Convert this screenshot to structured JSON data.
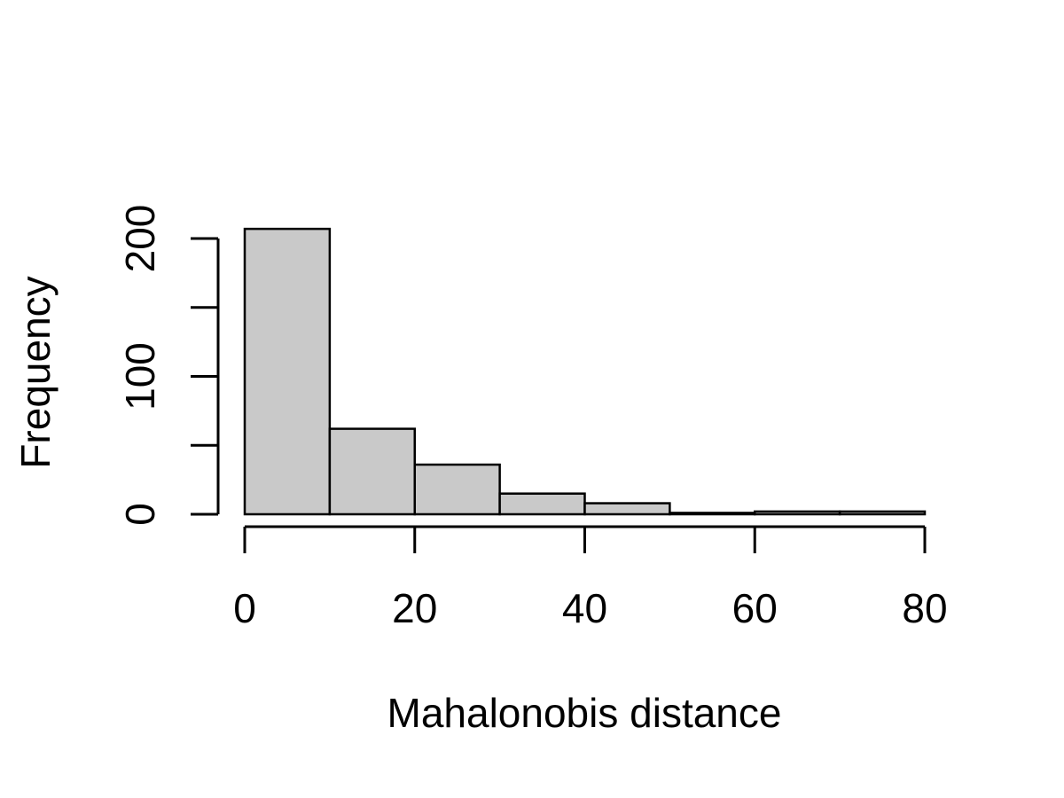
{
  "chart_data": {
    "type": "bar",
    "subtype": "histogram",
    "title": "",
    "xlabel": "Mahalonobis distance",
    "ylabel": "Frequency",
    "bins": [
      {
        "start": 0,
        "end": 10,
        "count": 207
      },
      {
        "start": 10,
        "end": 20,
        "count": 62
      },
      {
        "start": 20,
        "end": 30,
        "count": 36
      },
      {
        "start": 30,
        "end": 40,
        "count": 15
      },
      {
        "start": 40,
        "end": 50,
        "count": 8
      },
      {
        "start": 50,
        "end": 60,
        "count": 1
      },
      {
        "start": 60,
        "end": 70,
        "count": 2
      },
      {
        "start": 70,
        "end": 80,
        "count": 2
      }
    ],
    "xlim": [
      0,
      80
    ],
    "ylim": [
      0,
      200
    ],
    "x_ticks": [
      0,
      20,
      40,
      60,
      80
    ],
    "x_tick_labels": [
      "0",
      "20",
      "40",
      "60",
      "80"
    ],
    "y_ticks": [
      0,
      50,
      100,
      150,
      200
    ],
    "y_tick_labels": [
      "0",
      "",
      "100",
      "",
      "200"
    ],
    "grid": false,
    "legend": "none",
    "bar_fill": "#c9c9c9",
    "bar_stroke": "#000000"
  }
}
